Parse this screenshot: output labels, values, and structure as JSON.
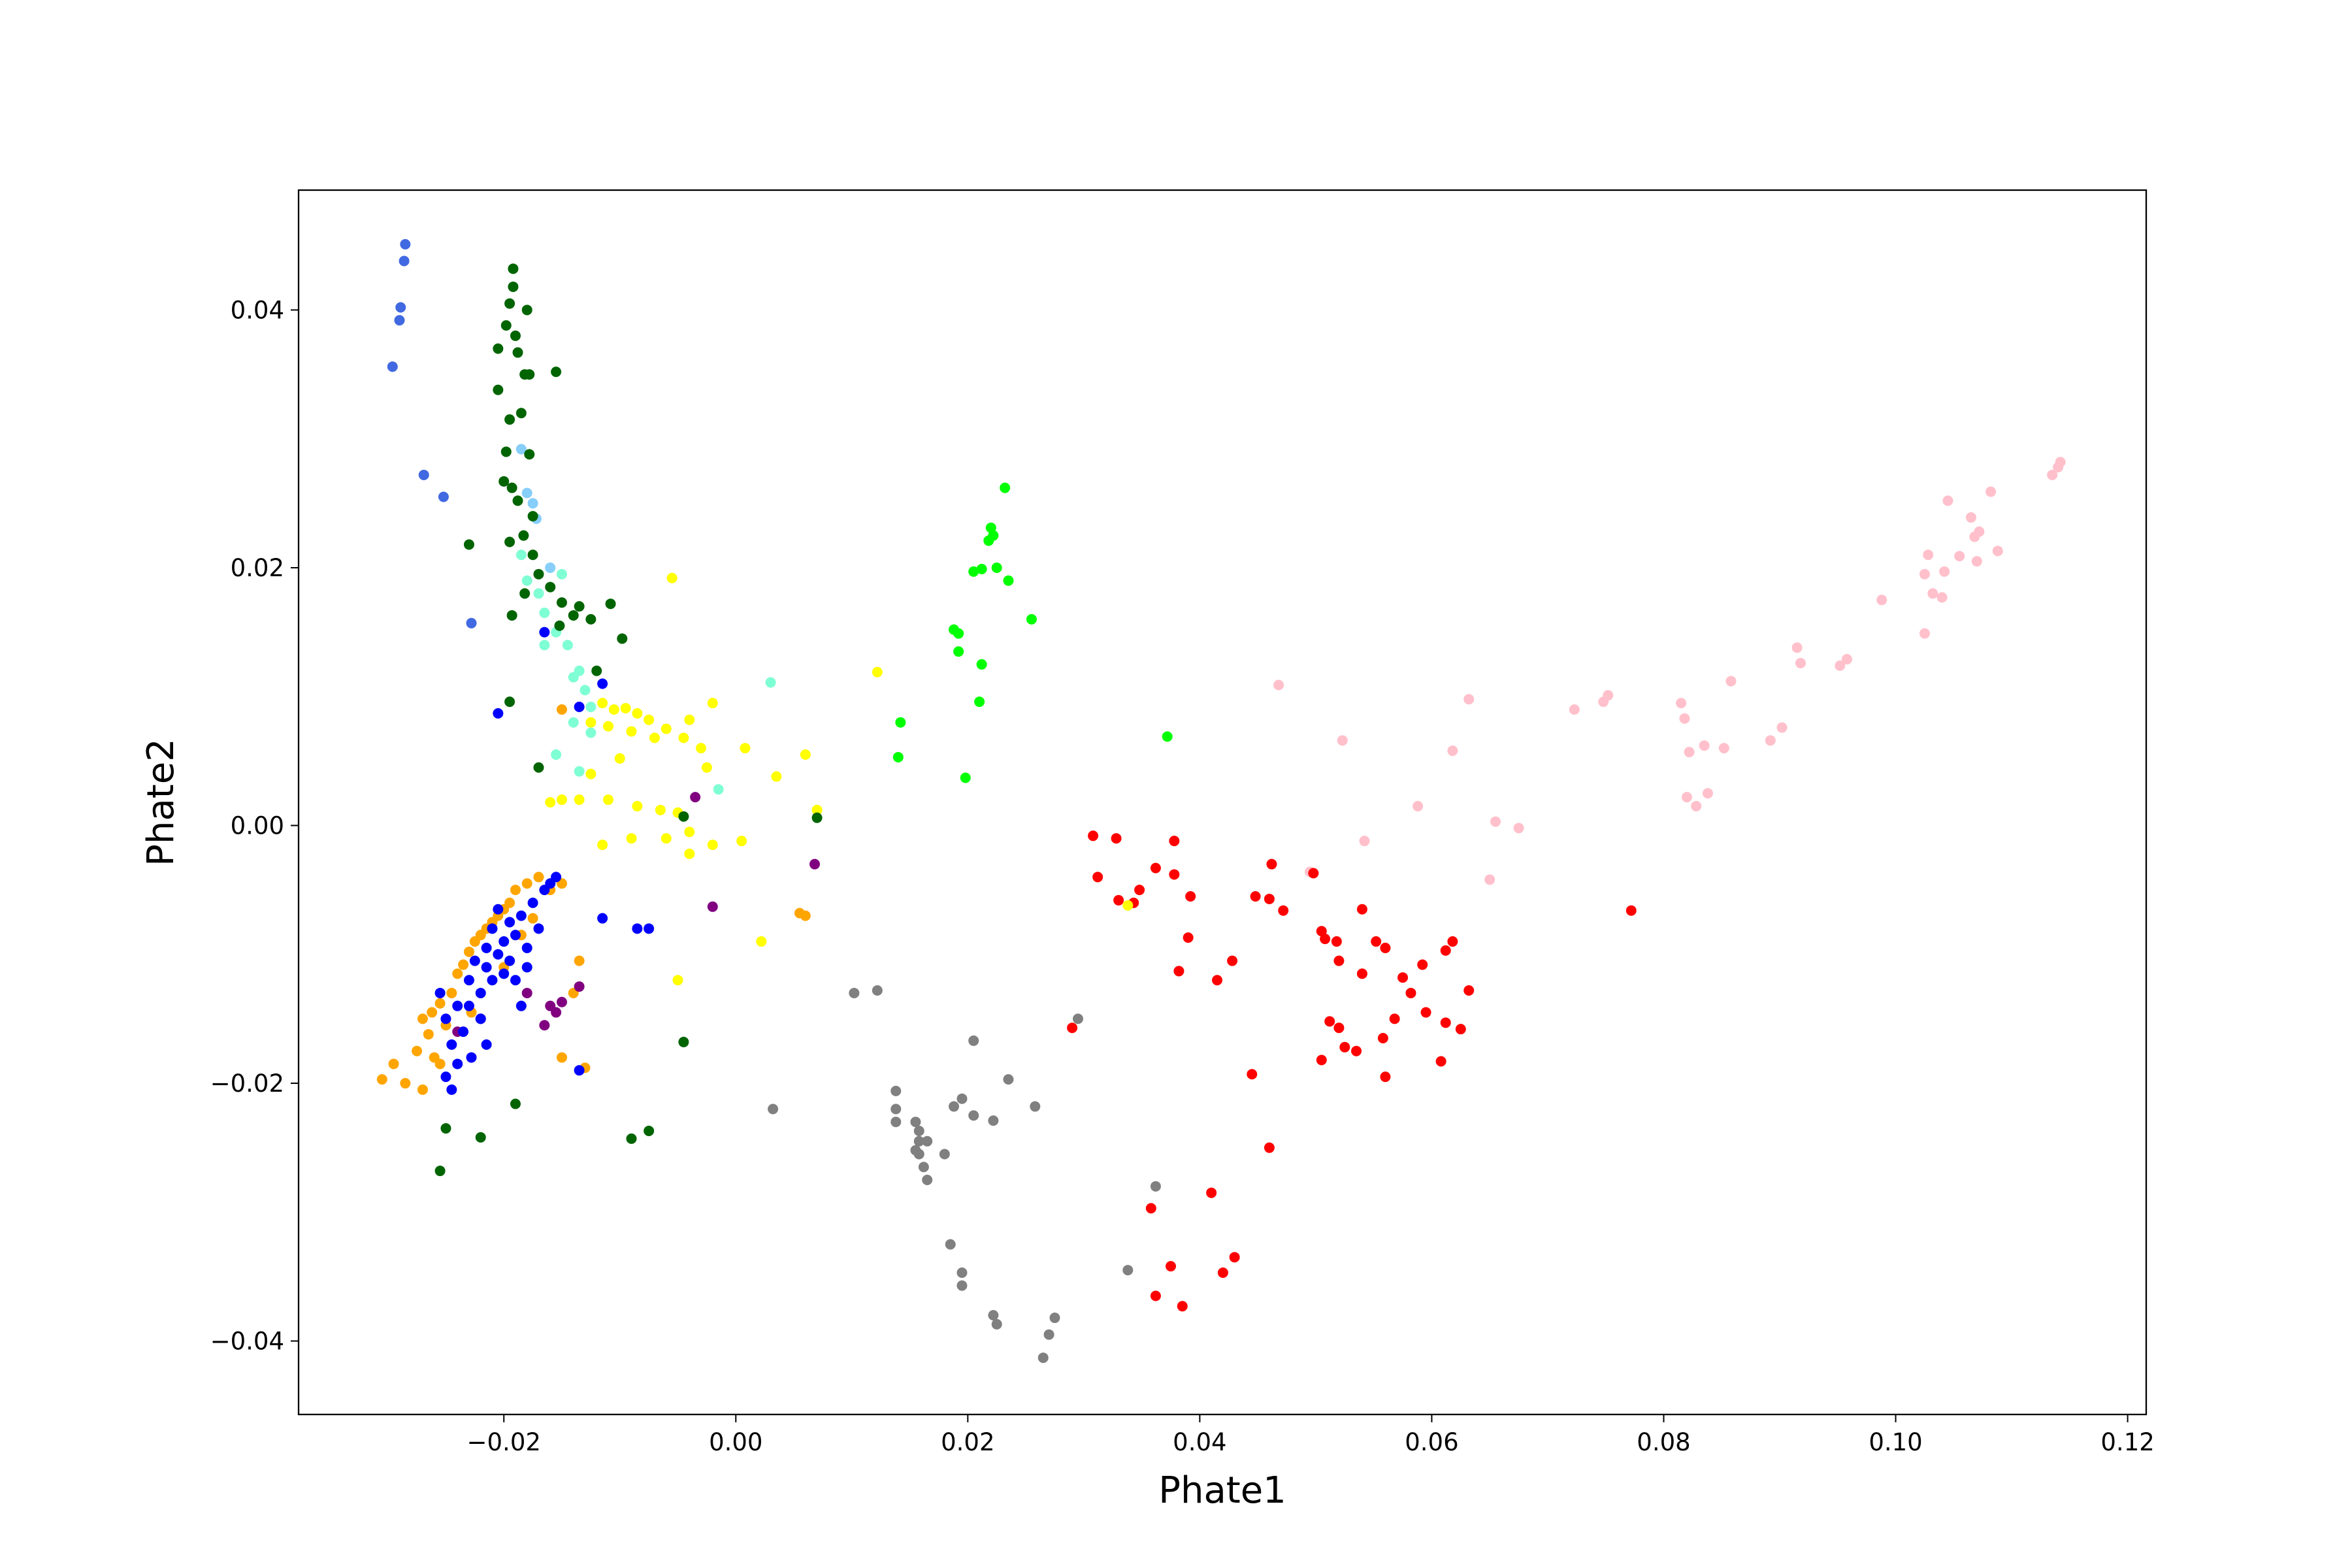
{
  "chart_data": {
    "type": "scatter",
    "xlabel": "Phate1",
    "ylabel": "Phate2",
    "xlim": [
      -0.0377,
      0.1216
    ],
    "ylim": [
      -0.0457,
      0.0493
    ],
    "xticks": [
      {
        "value": -0.02,
        "label": "−0.02"
      },
      {
        "value": 0,
        "label": "0.00"
      },
      {
        "value": 0.02,
        "label": "0.02"
      },
      {
        "value": 0.04,
        "label": "0.04"
      },
      {
        "value": 0.06,
        "label": "0.06"
      },
      {
        "value": 0.08,
        "label": "0.08"
      },
      {
        "value": 0.1,
        "label": "0.10"
      },
      {
        "value": 0.12,
        "label": "0.12"
      }
    ],
    "yticks": [
      {
        "value": -0.04,
        "label": "−0.04"
      },
      {
        "value": -0.02,
        "label": "−0.02"
      },
      {
        "value": 0,
        "label": "0.00"
      },
      {
        "value": 0.02,
        "label": "0.02"
      },
      {
        "value": 0.04,
        "label": "0.04"
      }
    ],
    "grid": false,
    "series": [
      {
        "color": "#ffc0cb",
        "x": [
          0.0468,
          0.0523,
          0.0495,
          0.0542,
          0.0588,
          0.0618,
          0.0632,
          0.0655,
          0.0675,
          0.065,
          0.0723,
          0.0748,
          0.0752,
          0.0815,
          0.0818,
          0.0822,
          0.0835,
          0.0852,
          0.0858,
          0.0838,
          0.0828,
          0.082,
          0.0892,
          0.0902,
          0.0915,
          0.0918,
          0.0952,
          0.0958,
          0.0988,
          0.1025,
          0.1025,
          0.1028,
          0.1032,
          0.104,
          0.1042,
          0.1045,
          0.1055,
          0.1065,
          0.1068,
          0.1072,
          0.107,
          0.1082,
          0.1088,
          0.1135,
          0.1142,
          0.114
        ],
        "values": [
          0.0109,
          0.0066,
          -0.0036,
          -0.0012,
          0.0015,
          0.0058,
          0.0098,
          0.0003,
          -0.0002,
          -0.0042,
          0.009,
          0.0096,
          0.0101,
          0.0095,
          0.0083,
          0.0057,
          0.0062,
          0.006,
          0.0112,
          0.0025,
          0.0015,
          0.0022,
          0.0066,
          0.0076,
          0.0138,
          0.0126,
          0.0124,
          0.0129,
          0.0175,
          0.0149,
          0.0195,
          0.021,
          0.018,
          0.0177,
          0.0197,
          0.0252,
          0.0209,
          0.0239,
          0.0224,
          0.0228,
          0.0205,
          0.0259,
          0.0213,
          0.0272,
          0.0282,
          0.0278
        ]
      },
      {
        "color": "#ff0000",
        "x": [
          0.0308,
          0.0328,
          0.0378,
          0.0362,
          0.0378,
          0.0312,
          0.0348,
          0.033,
          0.0343,
          0.0392,
          0.039,
          0.0382,
          0.0428,
          0.0415,
          0.0462,
          0.0448,
          0.046,
          0.0472,
          0.0498,
          0.054,
          0.0505,
          0.0518,
          0.0508,
          0.052,
          0.0552,
          0.056,
          0.054,
          0.0575,
          0.0592,
          0.0618,
          0.0612,
          0.0582,
          0.0632,
          0.0512,
          0.052,
          0.0525,
          0.0535,
          0.0558,
          0.0568,
          0.0595,
          0.0612,
          0.0625,
          0.056,
          0.0608,
          0.0505,
          0.0445,
          0.046,
          0.041,
          0.0358,
          0.0375,
          0.0362,
          0.0385,
          0.042,
          0.043,
          0.029,
          0.0772
        ],
        "values": [
          -0.0008,
          -0.001,
          -0.0012,
          -0.0033,
          -0.0038,
          -0.004,
          -0.005,
          -0.0058,
          -0.006,
          -0.0055,
          -0.0087,
          -0.0113,
          -0.0105,
          -0.012,
          -0.003,
          -0.0055,
          -0.0057,
          -0.0066,
          -0.0037,
          -0.0065,
          -0.0082,
          -0.009,
          -0.0088,
          -0.0105,
          -0.009,
          -0.0095,
          -0.0115,
          -0.0118,
          -0.0108,
          -0.009,
          -0.0097,
          -0.013,
          -0.0128,
          -0.0152,
          -0.0157,
          -0.0172,
          -0.0175,
          -0.0165,
          -0.015,
          -0.0145,
          -0.0153,
          -0.0158,
          -0.0195,
          -0.0183,
          -0.0182,
          -0.0193,
          -0.025,
          -0.0285,
          -0.0297,
          -0.0342,
          -0.0365,
          -0.0373,
          -0.0347,
          -0.0335,
          -0.0157,
          -0.0066
        ]
      },
      {
        "color": "#808080",
        "x": [
          0.0102,
          0.0122,
          0.0205,
          0.0195,
          0.0188,
          0.0235,
          0.0222,
          0.0205,
          0.0258,
          0.0295,
          0.0138,
          0.0138,
          0.0155,
          0.0158,
          0.0158,
          0.0162,
          0.0165,
          0.018,
          0.0185,
          0.0195,
          0.0195,
          0.0222,
          0.0225,
          0.0275,
          0.027,
          0.0265,
          0.0158,
          0.0155,
          0.0165,
          0.0032,
          0.0138,
          0.0338,
          0.0362
        ],
        "values": [
          -0.013,
          -0.0128,
          -0.0167,
          -0.0212,
          -0.0218,
          -0.0197,
          -0.0229,
          -0.0225,
          -0.0218,
          -0.015,
          -0.0206,
          -0.022,
          -0.023,
          -0.0245,
          -0.0255,
          -0.0265,
          -0.0275,
          -0.0255,
          -0.0325,
          -0.0347,
          -0.0357,
          -0.038,
          -0.0387,
          -0.0382,
          -0.0395,
          -0.0413,
          -0.0237,
          -0.0252,
          -0.0245,
          -0.022,
          -0.023,
          -0.0345,
          -0.028
        ]
      },
      {
        "color": "#00ff00",
        "x": [
          0.0232,
          0.022,
          0.0222,
          0.0218,
          0.0212,
          0.0205,
          0.0225,
          0.0235,
          0.0255,
          0.0188,
          0.0192,
          0.0192,
          0.0212,
          0.021,
          0.0198,
          0.0142,
          0.014,
          0.0372
        ],
        "values": [
          0.0262,
          0.0231,
          0.0225,
          0.0221,
          0.0199,
          0.0197,
          0.02,
          0.019,
          0.016,
          0.0152,
          0.0149,
          0.0135,
          0.0125,
          0.0096,
          0.0037,
          0.008,
          0.0053,
          0.0069
        ]
      },
      {
        "color": "#ffff00",
        "x": [
          -0.0115,
          -0.0105,
          -0.0095,
          -0.0085,
          -0.0075,
          -0.006,
          -0.004,
          -0.002,
          -0.0125,
          -0.011,
          -0.009,
          -0.007,
          -0.0045,
          -0.003,
          0.0008,
          0.0035,
          0.006,
          -0.0025,
          -0.01,
          -0.0125,
          -0.015,
          -0.016,
          -0.0135,
          -0.011,
          -0.0085,
          -0.0065,
          -0.005,
          -0.004,
          -0.006,
          -0.009,
          -0.0115,
          -0.004,
          -0.002,
          0.0005,
          -0.005,
          -0.0055,
          0.0122,
          0.0022,
          0.007,
          0.0338
        ],
        "values": [
          0.0095,
          0.009,
          0.0091,
          0.0087,
          0.0082,
          0.0075,
          0.0082,
          0.0095,
          0.008,
          0.0077,
          0.0073,
          0.0068,
          0.0068,
          0.006,
          0.006,
          0.0038,
          0.0055,
          0.0045,
          0.0052,
          0.004,
          0.002,
          0.0018,
          0.002,
          0.002,
          0.0015,
          0.0012,
          0.001,
          -0.0005,
          -0.001,
          -0.001,
          -0.0015,
          -0.0022,
          -0.0015,
          -0.0012,
          -0.012,
          0.0192,
          0.0119,
          -0.009,
          0.0012,
          -0.0062
        ]
      },
      {
        "color": "#7fffd4",
        "x": [
          -0.0185,
          -0.018,
          -0.017,
          -0.016,
          -0.015,
          -0.0165,
          -0.0155,
          -0.0145,
          -0.0165,
          -0.0135,
          -0.014,
          -0.013,
          -0.0125,
          -0.014,
          -0.0125,
          -0.0135,
          0.003,
          -0.0015,
          -0.0155
        ],
        "values": [
          0.021,
          0.019,
          0.018,
          0.02,
          0.0195,
          0.0165,
          0.015,
          0.014,
          0.014,
          0.012,
          0.0115,
          0.0105,
          0.0092,
          0.008,
          0.0072,
          0.0042,
          0.0111,
          0.0028,
          0.0055
        ]
      },
      {
        "color": "#87cefa",
        "x": [
          -0.0185,
          -0.018,
          -0.0175,
          -0.0172,
          -0.016
        ],
        "values": [
          0.0292,
          0.0258,
          0.025,
          0.0238,
          0.02
        ]
      },
      {
        "color": "#006400",
        "x": [
          -0.0192,
          -0.0192,
          -0.0195,
          -0.018,
          -0.0198,
          -0.019,
          -0.0205,
          -0.0188,
          -0.0182,
          -0.0178,
          -0.0205,
          -0.0185,
          -0.0195,
          -0.0198,
          -0.0178,
          -0.02,
          -0.0193,
          -0.0188,
          -0.0175,
          -0.0183,
          -0.0195,
          -0.0175,
          -0.017,
          -0.016,
          -0.0182,
          -0.015,
          -0.0135,
          -0.0108,
          -0.0125,
          -0.0098,
          -0.0152,
          -0.014,
          -0.0193,
          -0.012,
          -0.0255,
          -0.025,
          -0.022,
          -0.019,
          -0.009,
          -0.0075,
          -0.0045,
          -0.0045,
          0.007,
          -0.023,
          -0.0155,
          -0.0195,
          -0.017
        ],
        "values": [
          0.0432,
          0.0418,
          0.0405,
          0.04,
          0.0388,
          0.038,
          0.037,
          0.0367,
          0.035,
          0.035,
          0.0338,
          0.032,
          0.0315,
          0.029,
          0.0288,
          0.0267,
          0.0262,
          0.0252,
          0.024,
          0.0225,
          0.022,
          0.021,
          0.0195,
          0.0185,
          0.018,
          0.0173,
          0.017,
          0.0172,
          0.016,
          0.0145,
          0.0155,
          0.0163,
          0.0163,
          0.012,
          -0.0268,
          -0.0235,
          -0.0242,
          -0.0216,
          -0.0243,
          -0.0237,
          -0.0168,
          0.0007,
          0.0006,
          0.0218,
          0.0352,
          0.0096,
          0.0045
        ]
      },
      {
        "color": "#ffa500",
        "x": [
          -0.0305,
          -0.0295,
          -0.0285,
          -0.0275,
          -0.0265,
          -0.026,
          -0.027,
          -0.0262,
          -0.0255,
          -0.025,
          -0.0245,
          -0.024,
          -0.0235,
          -0.023,
          -0.0225,
          -0.022,
          -0.0215,
          -0.021,
          -0.0205,
          -0.02,
          -0.0195,
          -0.019,
          -0.0185,
          -0.018,
          -0.0175,
          -0.017,
          -0.016,
          -0.015,
          -0.0135,
          -0.014,
          -0.015,
          -0.013,
          -0.027,
          -0.0255,
          -0.0228,
          -0.02,
          0.006,
          0.0055,
          -0.015
        ],
        "values": [
          -0.0197,
          -0.0185,
          -0.02,
          -0.0175,
          -0.0162,
          -0.018,
          -0.015,
          -0.0145,
          -0.0138,
          -0.0155,
          -0.013,
          -0.0115,
          -0.0108,
          -0.0098,
          -0.009,
          -0.0085,
          -0.008,
          -0.0075,
          -0.007,
          -0.0065,
          -0.006,
          -0.005,
          -0.0085,
          -0.0045,
          -0.0072,
          -0.004,
          -0.005,
          -0.0045,
          -0.0105,
          -0.013,
          -0.018,
          -0.0188,
          -0.0205,
          -0.0185,
          -0.0145,
          -0.011,
          -0.007,
          -0.0068,
          0.009
        ]
      },
      {
        "color": "#800080",
        "x": [
          -0.018,
          -0.016,
          -0.015,
          -0.0135,
          -0.0155,
          -0.0165,
          -0.002,
          0.0068,
          -0.0035,
          -0.022,
          -0.024
        ],
        "values": [
          -0.013,
          -0.014,
          -0.0137,
          -0.0125,
          -0.0145,
          -0.0155,
          -0.0063,
          -0.003,
          0.0022,
          -0.015,
          -0.016
        ]
      },
      {
        "color": "#0000ff",
        "x": [
          -0.0255,
          -0.025,
          -0.0245,
          -0.024,
          -0.025,
          -0.0235,
          -0.023,
          -0.023,
          -0.0225,
          -0.022,
          -0.022,
          -0.0215,
          -0.0215,
          -0.021,
          -0.021,
          -0.0205,
          -0.0205,
          -0.02,
          -0.02,
          -0.0195,
          -0.0195,
          -0.019,
          -0.019,
          -0.0185,
          -0.018,
          -0.0175,
          -0.017,
          -0.0165,
          -0.016,
          -0.0155,
          -0.024,
          -0.0228,
          -0.0215,
          -0.0245,
          -0.0135,
          -0.0115,
          -0.0085,
          -0.0075,
          -0.0135,
          -0.0205,
          -0.0115,
          -0.0165,
          -0.018,
          -0.0185
        ],
        "values": [
          -0.013,
          -0.015,
          -0.017,
          -0.0185,
          -0.0195,
          -0.016,
          -0.014,
          -0.012,
          -0.0105,
          -0.015,
          -0.013,
          -0.011,
          -0.0095,
          -0.008,
          -0.012,
          -0.01,
          -0.0065,
          -0.0115,
          -0.009,
          -0.0075,
          -0.0105,
          -0.0085,
          -0.012,
          -0.007,
          -0.0095,
          -0.006,
          -0.008,
          -0.005,
          -0.0045,
          -0.004,
          -0.014,
          -0.018,
          -0.017,
          -0.0205,
          -0.019,
          -0.0072,
          -0.008,
          -0.008,
          0.0092,
          0.0087,
          0.011,
          0.015,
          -0.011,
          -0.014
        ]
      },
      {
        "color": "#4169e1",
        "x": [
          -0.0285,
          -0.0286,
          -0.0289,
          -0.029,
          -0.0296,
          -0.0269,
          -0.0252,
          -0.0228
        ],
        "values": [
          0.0451,
          0.0438,
          0.0402,
          0.0392,
          0.0356,
          0.0272,
          0.0255,
          0.0157
        ]
      }
    ]
  }
}
